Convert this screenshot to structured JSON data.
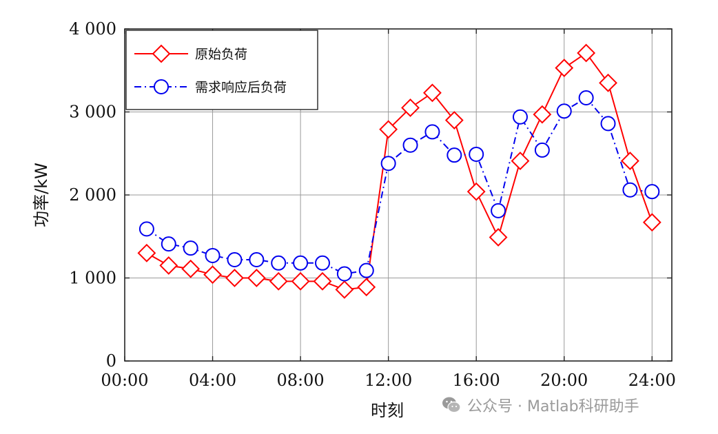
{
  "chart_data": {
    "type": "line",
    "xlabel": "时刻",
    "ylabel": "功率/kW",
    "x": [
      1,
      2,
      3,
      4,
      5,
      6,
      7,
      8,
      9,
      10,
      11,
      12,
      13,
      14,
      15,
      16,
      17,
      18,
      19,
      20,
      21,
      22,
      23,
      24
    ],
    "xlim": [
      0,
      24.9
    ],
    "ylim": [
      0,
      4000
    ],
    "x_ticks": [
      0,
      4,
      8,
      12,
      16,
      20,
      24
    ],
    "x_tick_labels": [
      "00:00",
      "04:00",
      "08:00",
      "12:00",
      "16:00",
      "20:00",
      "24:00"
    ],
    "y_ticks": [
      0,
      1000,
      2000,
      3000,
      4000
    ],
    "y_tick_labels": [
      "0",
      "1 000",
      "2 000",
      "3 000",
      "4 000"
    ],
    "grid": true,
    "legend_position": "top-left",
    "series": [
      {
        "name": "原始负荷",
        "color": "#ff0000",
        "line_style": "solid",
        "marker": "diamond",
        "values": [
          1300,
          1150,
          1110,
          1040,
          1000,
          1000,
          960,
          960,
          960,
          860,
          890,
          2790,
          3050,
          3230,
          2900,
          2040,
          1490,
          2410,
          2970,
          3530,
          3710,
          3350,
          2410,
          1670
        ]
      },
      {
        "name": "需求响应后负荷",
        "color": "#0000ee",
        "line_style": "dashdot",
        "marker": "circle",
        "values": [
          1590,
          1410,
          1360,
          1270,
          1220,
          1220,
          1180,
          1180,
          1180,
          1050,
          1090,
          2380,
          2600,
          2760,
          2480,
          2490,
          1810,
          2940,
          2540,
          3010,
          3170,
          2860,
          2060,
          2040
        ]
      }
    ]
  },
  "watermark": {
    "icon": "wechat-icon",
    "text": "公众号 · Matlab科研助手"
  }
}
